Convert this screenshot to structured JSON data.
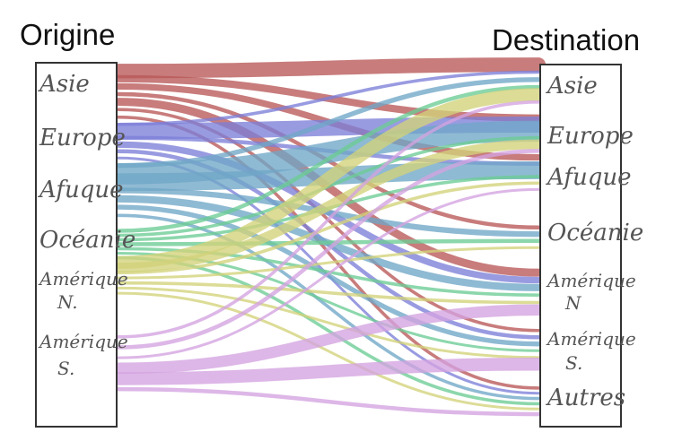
{
  "title_origin": "Origine",
  "title_destination": "Destination",
  "origin_nodes": [
    {
      "id": "asie",
      "lines": [
        "Asie"
      ]
    },
    {
      "id": "europe",
      "lines": [
        "Europe"
      ]
    },
    {
      "id": "afrique",
      "lines": [
        "Afuque"
      ]
    },
    {
      "id": "oceanie",
      "lines": [
        "Océanie"
      ]
    },
    {
      "id": "amerique_n",
      "lines": [
        "Amérique",
        "N."
      ]
    },
    {
      "id": "amerique_s",
      "lines": [
        "Amérique",
        "S."
      ]
    }
  ],
  "destination_nodes": [
    {
      "id": "asie",
      "lines": [
        "Asie"
      ]
    },
    {
      "id": "europe",
      "lines": [
        "Europe"
      ]
    },
    {
      "id": "afrique",
      "lines": [
        "Afuque"
      ]
    },
    {
      "id": "oceanie",
      "lines": [
        "Océanie"
      ]
    },
    {
      "id": "amerique_n",
      "lines": [
        "Amérique",
        "N"
      ]
    },
    {
      "id": "amerique_s",
      "lines": [
        "Amérique",
        "S."
      ]
    },
    {
      "id": "autres",
      "lines": [
        "Autres"
      ]
    }
  ],
  "colors": {
    "asie": "#b85757",
    "europe": "#7c7fd8",
    "afrique": "#6fa6c6",
    "oceanie": "#6ccc95",
    "amerique_n": "#d2d27a",
    "amerique_s": "#d4a3e0"
  },
  "flows": [
    {
      "from": "asie",
      "to": "asie",
      "weight": 18
    },
    {
      "from": "asie",
      "to": "europe",
      "weight": 9
    },
    {
      "from": "asie",
      "to": "afrique",
      "weight": 8
    },
    {
      "from": "asie",
      "to": "oceanie",
      "weight": 5
    },
    {
      "from": "asie",
      "to": "amerique_n",
      "weight": 10
    },
    {
      "from": "asie",
      "to": "amerique_s",
      "weight": 4
    },
    {
      "from": "asie",
      "to": "autres",
      "weight": 4
    },
    {
      "from": "europe",
      "to": "asie",
      "weight": 4
    },
    {
      "from": "europe",
      "to": "europe",
      "weight": 20
    },
    {
      "from": "europe",
      "to": "afrique",
      "weight": 5
    },
    {
      "from": "europe",
      "to": "amerique_n",
      "weight": 8
    },
    {
      "from": "europe",
      "to": "amerique_s",
      "weight": 5
    },
    {
      "from": "europe",
      "to": "autres",
      "weight": 3
    },
    {
      "from": "afrique",
      "to": "asie",
      "weight": 6
    },
    {
      "from": "afrique",
      "to": "europe",
      "weight": 26
    },
    {
      "from": "afrique",
      "to": "afrique",
      "weight": 22
    },
    {
      "from": "afrique",
      "to": "oceanie",
      "weight": 7
    },
    {
      "from": "afrique",
      "to": "amerique_n",
      "weight": 9
    },
    {
      "from": "afrique",
      "to": "amerique_s",
      "weight": 6
    },
    {
      "from": "afrique",
      "to": "autres",
      "weight": 4
    },
    {
      "from": "oceanie",
      "to": "asie",
      "weight": 5
    },
    {
      "from": "oceanie",
      "to": "europe",
      "weight": 4
    },
    {
      "from": "oceanie",
      "to": "afrique",
      "weight": 4
    },
    {
      "from": "oceanie",
      "to": "oceanie",
      "weight": 5
    },
    {
      "from": "oceanie",
      "to": "amerique_n",
      "weight": 4
    },
    {
      "from": "oceanie",
      "to": "amerique_s",
      "weight": 3
    },
    {
      "from": "oceanie",
      "to": "autres",
      "weight": 4
    },
    {
      "from": "amerique_n",
      "to": "asie",
      "weight": 16
    },
    {
      "from": "amerique_n",
      "to": "europe",
      "weight": 12
    },
    {
      "from": "amerique_n",
      "to": "afrique",
      "weight": 4
    },
    {
      "from": "amerique_n",
      "to": "oceanie",
      "weight": 3
    },
    {
      "from": "amerique_n",
      "to": "amerique_n",
      "weight": 4
    },
    {
      "from": "amerique_n",
      "to": "amerique_s",
      "weight": 3
    },
    {
      "from": "amerique_n",
      "to": "autres",
      "weight": 3
    },
    {
      "from": "amerique_s",
      "to": "asie",
      "weight": 4
    },
    {
      "from": "amerique_s",
      "to": "europe",
      "weight": 5
    },
    {
      "from": "amerique_s",
      "to": "afrique",
      "weight": 3
    },
    {
      "from": "amerique_s",
      "to": "amerique_n",
      "weight": 14
    },
    {
      "from": "amerique_s",
      "to": "amerique_s",
      "weight": 16
    },
    {
      "from": "amerique_s",
      "to": "autres",
      "weight": 5
    }
  ]
}
